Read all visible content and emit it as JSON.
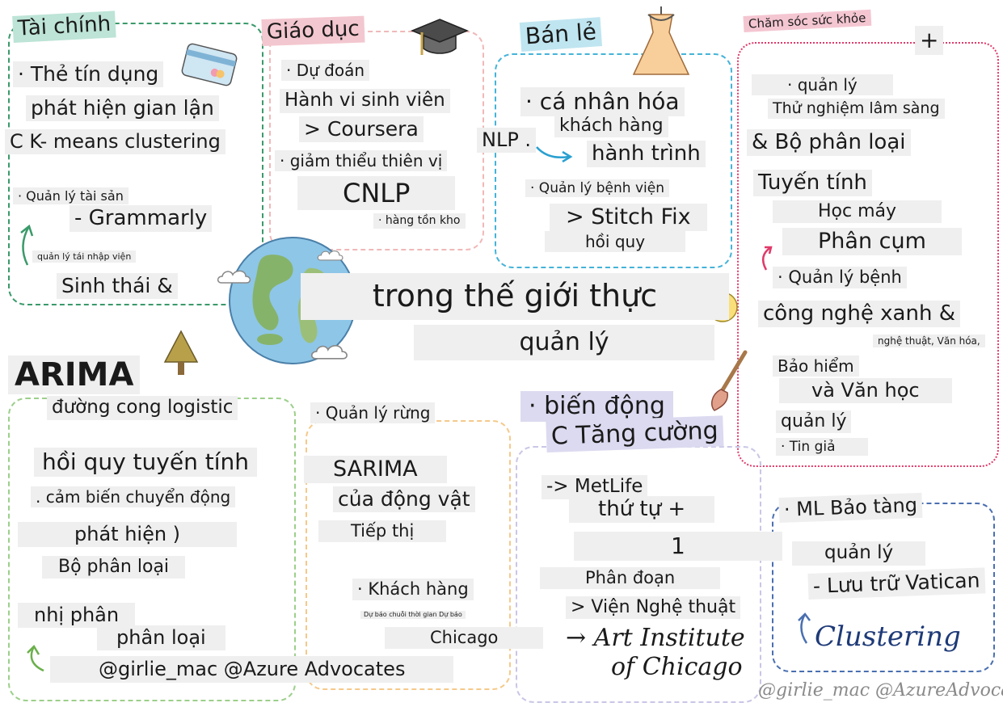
{
  "colors": {
    "finance": "#3a9a6a",
    "education": "#f0b8b8",
    "retail": "#45b3d8",
    "healthcare": "#e03a6a",
    "ecology": "#9ccf8a",
    "forestry": "#f5c98a",
    "marketing": "#c9c6e6",
    "museum": "#4a6fb0",
    "label_bg": "#efefef",
    "finance_tag": "#bde4d6",
    "education_tag": "#f3c7cf",
    "retail_tag": "#bfe5f0",
    "healthcare_tag": "#f4c6d2"
  },
  "center": {
    "line1": "trong thế giới thực",
    "line2": "quản lý"
  },
  "finance": {
    "title": "Tài chính",
    "items": [
      "· Thẻ tín dụng",
      "phát hiện gian lận",
      "C K- means clustering",
      "· Quản lý tài sản",
      "- Grammarly",
      "quản lý tái nhập viện",
      "Sinh thái &"
    ]
  },
  "education": {
    "title": "Giáo dục",
    "items": [
      "· Dự đoán",
      "Hành vi sinh viên",
      "> Coursera",
      "· giảm thiểu thiên vị",
      "CNLP",
      "· hàng tồn kho"
    ]
  },
  "retail": {
    "title": "Bán lẻ",
    "items": [
      "· cá nhân hóa",
      "khách hàng",
      "hành trình",
      "NLP .",
      "· Quản lý bệnh viện",
      "> Stitch Fix",
      "hồi quy"
    ]
  },
  "healthcare": {
    "title": "Chăm sóc sức khỏe",
    "plus": "+",
    "items": [
      "· quản lý",
      "Thử nghiệm lâm sàng",
      "& Bộ phân loại",
      "Tuyến tính",
      "Học máy",
      "Phân cụm",
      "· Quản lý bệnh",
      "công nghệ xanh &",
      "nghệ thuật, Văn hóa,",
      "Bảo hiểm",
      "và Văn học",
      "quản lý",
      "· Tin giả"
    ]
  },
  "ecology": {
    "items": [
      "ARIMA",
      "đường cong logistic",
      "hồi quy tuyến tính",
      ". cảm biến chuyển động",
      "phát hiện )",
      "Bộ phân loại",
      "nhị phân",
      "phân loại",
      "@girlie_mac @Azure Advocates"
    ]
  },
  "forestry": {
    "items": [
      "· Quản lý rừng",
      "SARIMA",
      "của động vật",
      "Tiếp thị",
      "· Khách hàng",
      "Dự báo chuỗi thời gian Dự báo",
      "Chicago"
    ]
  },
  "marketing": {
    "items": [
      "· biến động",
      "C Tăng cường",
      "-> MetLife",
      "thứ tự +",
      "1",
      "Phân đoạn",
      "> Viện Nghệ thuật",
      "→ Art Institute",
      "of Chicago"
    ]
  },
  "museum": {
    "items": [
      "· ML Bảo tàng",
      "quản lý",
      "- Lưu trữ Vatican",
      "Clustering"
    ]
  },
  "signature": "@girlie_mac @AzureAdvocates"
}
